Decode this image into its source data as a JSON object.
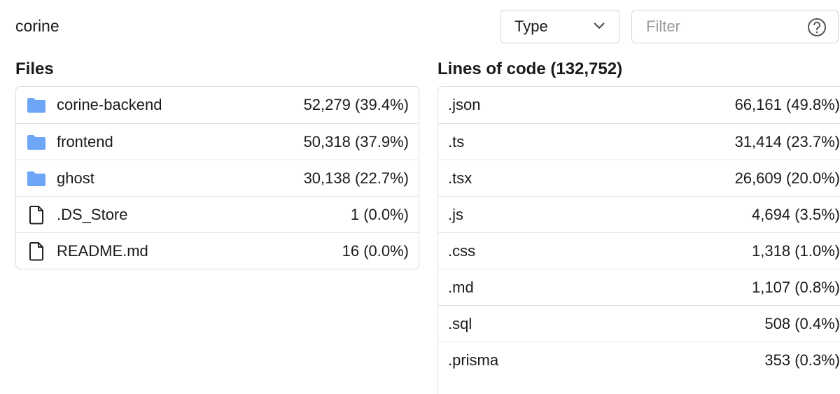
{
  "header": {
    "title": "corine",
    "type_select": "Type",
    "filter_placeholder": "Filter"
  },
  "files": {
    "title": "Files",
    "rows": [
      {
        "icon": "folder",
        "name": "corine-backend",
        "count": "52,279 (39.4%)"
      },
      {
        "icon": "folder",
        "name": "frontend",
        "count": "50,318 (37.9%)"
      },
      {
        "icon": "folder",
        "name": "ghost",
        "count": "30,138 (22.7%)"
      },
      {
        "icon": "file",
        "name": ".DS_Store",
        "count": "1 (0.0%)"
      },
      {
        "icon": "file",
        "name": "README.md",
        "count": "16 (0.0%)"
      }
    ]
  },
  "lines": {
    "title": "Lines of code (132,752)",
    "rows": [
      {
        "name": ".json",
        "count": "66,161 (49.8%)"
      },
      {
        "name": ".ts",
        "count": "31,414 (23.7%)"
      },
      {
        "name": ".tsx",
        "count": "26,609 (20.0%)"
      },
      {
        "name": ".js",
        "count": "4,694 (3.5%)"
      },
      {
        "name": ".css",
        "count": "1,318 (1.0%)"
      },
      {
        "name": ".md",
        "count": "1,107 (0.8%)"
      },
      {
        "name": ".sql",
        "count": "508 (0.4%)"
      },
      {
        "name": ".prisma",
        "count": "353 (0.3%)"
      }
    ]
  }
}
